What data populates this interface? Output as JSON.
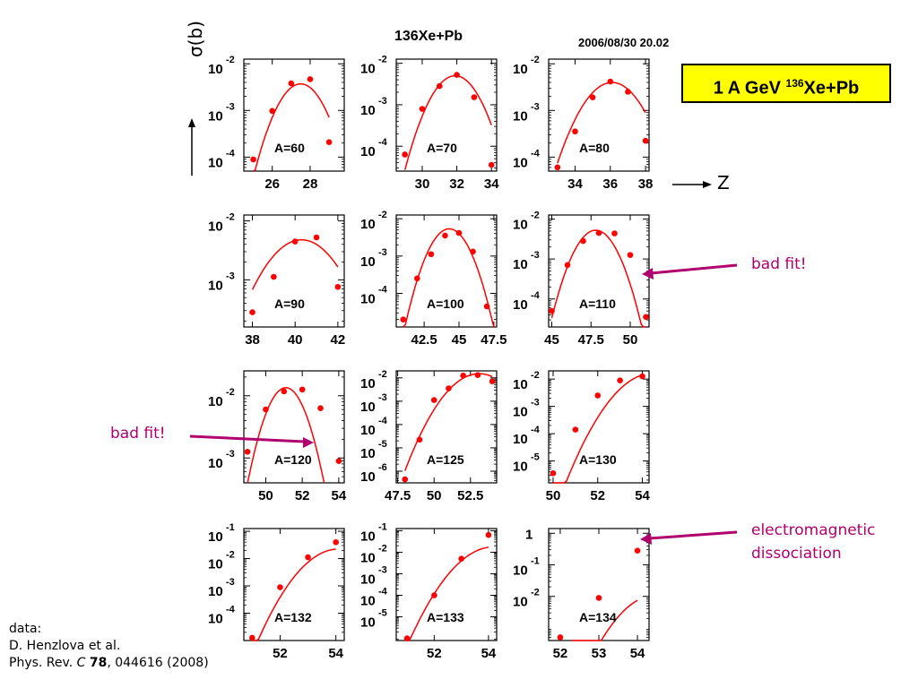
{
  "header": {
    "title": "136Xe+Pb",
    "date": "2006/08/30   20.02",
    "reaction_prefix": "1 A GeV ",
    "reaction_super": "136",
    "reaction_suffix": "Xe+Pb",
    "y_axis_label": "σ(b)",
    "x_axis_label": "Z"
  },
  "annotations": {
    "bad_fit_right": "bad fit!",
    "bad_fit_left": "bad fit!",
    "emd_line1": "electromagnetic",
    "emd_line2": "dissociation"
  },
  "reference": {
    "line1": "data:",
    "line2": "D. Henzlova et al.",
    "line3_a": "Phys. Rev. ",
    "line3_journal": "C",
    "line3_vol": "78",
    "line3_b": ", 044616 (2008)"
  },
  "colors": {
    "data": "#ff0000",
    "fit": "#ff0000",
    "annotation": "#b0006e",
    "box": "#ffff00"
  },
  "chart_data": [
    {
      "type": "scatter",
      "label": "A=60",
      "log_y": true,
      "xlim": [
        24.5,
        29.8
      ],
      "ylim": [
        -4.3,
        -1.9
      ],
      "xticks": [
        26,
        28
      ],
      "yticks": [
        -4,
        -3,
        -2
      ],
      "x": [
        25,
        26,
        27,
        28,
        29
      ],
      "y": [
        -4.05,
        -3.01,
        -2.42,
        -2.33,
        -3.68
      ],
      "fit": {
        "peak_x": 27.5,
        "peak_y": -2.43,
        "curv": 0.32,
        "x_range": [
          25,
          29
        ]
      }
    },
    {
      "type": "scatter",
      "label": "A=70",
      "log_y": true,
      "xlim": [
        28.5,
        34.3
      ],
      "ylim": [
        -4.6,
        -1.9
      ],
      "xticks": [
        30,
        32,
        34
      ],
      "yticks": [
        -4,
        -3,
        -2
      ],
      "x": [
        29,
        30,
        31,
        32,
        33,
        34
      ],
      "y": [
        -4.2,
        -3.1,
        -2.55,
        -2.28,
        -2.82,
        -4.45
      ],
      "fit": {
        "peak_x": 31.9,
        "peak_y": -2.3,
        "curv": 0.27,
        "x_range": [
          29,
          34
        ]
      }
    },
    {
      "type": "scatter",
      "label": "A=80",
      "log_y": true,
      "xlim": [
        32.5,
        38.2
      ],
      "ylim": [
        -4.3,
        -1.9
      ],
      "xticks": [
        34,
        36,
        38
      ],
      "yticks": [
        -4,
        -3,
        -2
      ],
      "x": [
        33,
        34,
        35,
        36,
        37,
        38
      ],
      "y": [
        -4.22,
        -3.45,
        -2.72,
        -2.38,
        -2.6,
        -3.65
      ],
      "fit": {
        "peak_x": 36.1,
        "peak_y": -2.4,
        "curv": 0.18,
        "x_range": [
          33,
          38
        ]
      }
    },
    {
      "type": "scatter",
      "label": "A=90",
      "log_y": true,
      "xlim": [
        37.6,
        42.3
      ],
      "ylim": [
        -3.8,
        -1.9
      ],
      "xticks": [
        38,
        40,
        42
      ],
      "yticks": [
        -3,
        -2
      ],
      "x": [
        38,
        39,
        40,
        41,
        42
      ],
      "y": [
        -3.55,
        -2.95,
        -2.35,
        -2.28,
        -3.12
      ],
      "fit": {
        "peak_x": 40.3,
        "peak_y": -2.32,
        "curv": 0.16,
        "x_range": [
          38,
          42
        ]
      }
    },
    {
      "type": "scatter",
      "label": "A=100",
      "log_y": true,
      "xlim": [
        40.5,
        47.7
      ],
      "ylim": [
        -4.9,
        -1.9
      ],
      "xticks": [
        42.5,
        45,
        47.5
      ],
      "yticks": [
        -4,
        -3,
        -2
      ],
      "x": [
        41,
        42,
        43,
        44,
        45,
        46,
        47
      ],
      "y": [
        -4.7,
        -3.6,
        -2.95,
        -2.45,
        -2.38,
        -2.88,
        -4.35
      ],
      "fit": {
        "peak_x": 44.3,
        "peak_y": -2.27,
        "curv": 0.26,
        "x_range": [
          41,
          47.5
        ]
      }
    },
    {
      "type": "scatter",
      "label": "A=110",
      "log_y": true,
      "xlim": [
        44.8,
        51.2
      ],
      "ylim": [
        -4.7,
        -1.9
      ],
      "xticks": [
        45,
        47.5,
        50
      ],
      "yticks": [
        -4,
        -3,
        -2
      ],
      "x": [
        45,
        46,
        47,
        48,
        49,
        50,
        51
      ],
      "y": [
        -4.3,
        -3.15,
        -2.55,
        -2.35,
        -2.36,
        -2.9,
        -4.45
      ],
      "fit": {
        "peak_x": 47.8,
        "peak_y": -2.28,
        "curv": 0.28,
        "x_range": [
          45,
          51
        ]
      }
    },
    {
      "type": "scatter",
      "label": "A=120",
      "log_y": true,
      "xlim": [
        48.8,
        54.3
      ],
      "ylim": [
        -3.4,
        -1.6
      ],
      "xticks": [
        50,
        52,
        54
      ],
      "yticks": [
        -3,
        -2
      ],
      "x": [
        49,
        50,
        51,
        52,
        53,
        54
      ],
      "y": [
        -2.9,
        -2.22,
        -1.93,
        -1.9,
        -2.2,
        -3.05
      ],
      "fit": {
        "peak_x": 51.1,
        "peak_y": -1.87,
        "curv": 0.35,
        "x_range": [
          49,
          53.2
        ]
      }
    },
    {
      "type": "scatter",
      "label": "A=125",
      "log_y": true,
      "xlim": [
        47.4,
        54.3
      ],
      "ylim": [
        -6.5,
        -1.7
      ],
      "xticks": [
        47.5,
        50,
        52.5
      ],
      "yticks": [
        -6,
        -5,
        -4,
        -3,
        -2
      ],
      "x": [
        48,
        49,
        50,
        51,
        52,
        53,
        54
      ],
      "y": [
        -6.35,
        -4.65,
        -2.95,
        -2.45,
        -1.9,
        -1.88,
        -2.15
      ],
      "fit": {
        "peak_x": 53.1,
        "peak_y": -1.82,
        "curv": 0.16,
        "x_range": [
          48,
          54
        ]
      }
    },
    {
      "type": "scatter",
      "label": "A=130",
      "log_y": true,
      "xlim": [
        49.8,
        54.3
      ],
      "ylim": [
        -5.8,
        -1.7
      ],
      "xticks": [
        50,
        52,
        54
      ],
      "yticks": [
        -5,
        -4,
        -3,
        -2
      ],
      "x": [
        50,
        51,
        52,
        53,
        54
      ],
      "y": [
        -5.45,
        -3.85,
        -2.6,
        -2.05,
        -1.9
      ],
      "fit": {
        "peak_x": 54.5,
        "peak_y": -1.78,
        "curv": 0.26,
        "x_range": [
          50,
          54
        ]
      }
    },
    {
      "type": "scatter",
      "label": "A=132",
      "log_y": true,
      "xlim": [
        50.7,
        54.3
      ],
      "ylim": [
        -5.0,
        -0.9
      ],
      "xticks": [
        52,
        54
      ],
      "yticks": [
        -4,
        -3,
        -2,
        -1
      ],
      "x": [
        51,
        52,
        53,
        54
      ],
      "y": [
        -4.9,
        -3.05,
        -1.95,
        -1.4
      ],
      "fit": {
        "peak_x": 54.1,
        "peak_y": -1.65,
        "curv": 0.4,
        "x_range": [
          51,
          54
        ]
      }
    },
    {
      "type": "scatter",
      "label": "A=133",
      "log_y": true,
      "xlim": [
        50.6,
        54.3
      ],
      "ylim": [
        -6.1,
        -0.9
      ],
      "xticks": [
        52,
        54
      ],
      "yticks": [
        -5,
        -4,
        -3,
        -2,
        -1
      ],
      "x": [
        51,
        52,
        53,
        54
      ],
      "y": [
        -6.0,
        -4.0,
        -2.3,
        -1.2
      ],
      "fit": {
        "peak_x": 54.2,
        "peak_y": -1.75,
        "curv": 0.45,
        "x_range": [
          51,
          54
        ]
      }
    },
    {
      "type": "scatter",
      "label": "A=134",
      "log_y": true,
      "xlim": [
        51.7,
        54.3
      ],
      "ylim": [
        -3.4,
        0.15
      ],
      "xticks": [
        52,
        53,
        54
      ],
      "yticks": [
        -2,
        -1,
        0
      ],
      "x": [
        52,
        53,
        54
      ],
      "y": [
        -3.3,
        -2.05,
        -0.55
      ],
      "fit": {
        "peak_x": 54.5,
        "peak_y": -1.95,
        "curv": 0.7,
        "x_range": [
          52.3,
          54
        ]
      }
    }
  ]
}
